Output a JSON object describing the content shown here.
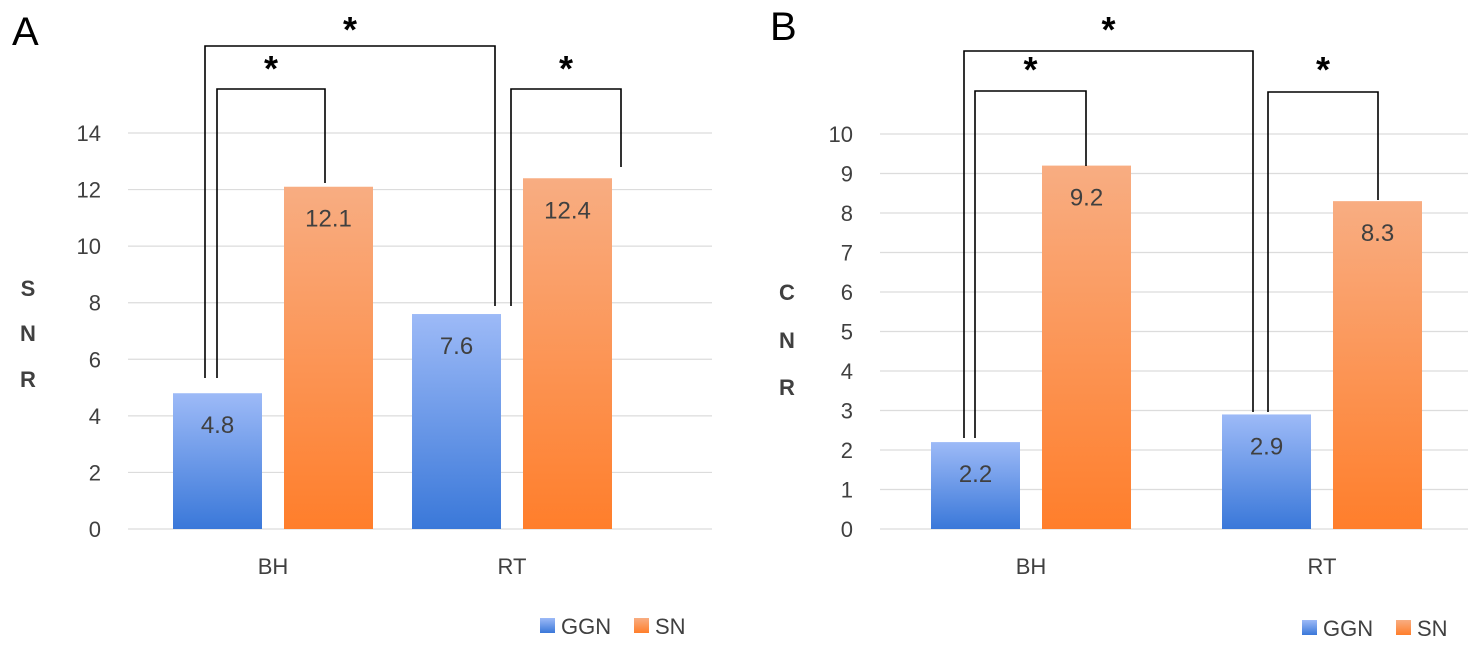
{
  "chart_data": [
    {
      "type": "bar",
      "panel_label": "A",
      "categories": [
        "BH",
        "RT"
      ],
      "series": [
        {
          "name": "GGN",
          "values": [
            4.8,
            7.6
          ]
        },
        {
          "name": "SN",
          "values": [
            12.1,
            12.4
          ]
        }
      ],
      "data_labels": {
        "GGN": [
          "4.8",
          "7.6"
        ],
        "SN": [
          "12.1",
          "12.4"
        ]
      },
      "ylabel": [
        "S",
        "N",
        "R"
      ],
      "ylim": [
        0,
        14
      ],
      "yticks": [
        "0",
        "2",
        "4",
        "6",
        "8",
        "10",
        "12",
        "14"
      ],
      "grid": true,
      "legend": [
        "GGN",
        "SN"
      ],
      "legend_position": "bottom-right",
      "significance_marker": "*",
      "significance_brackets": [
        "BH GGN vs BH SN",
        "RT GGN vs RT SN",
        "BH GGN vs RT GGN"
      ]
    },
    {
      "type": "bar",
      "panel_label": "B",
      "categories": [
        "BH",
        "RT"
      ],
      "series": [
        {
          "name": "GGN",
          "values": [
            2.2,
            2.9
          ]
        },
        {
          "name": "SN",
          "values": [
            9.2,
            8.3
          ]
        }
      ],
      "data_labels": {
        "GGN": [
          "2.2",
          "2.9"
        ],
        "SN": [
          "9.2",
          "8.3"
        ]
      },
      "ylabel": [
        "C",
        "N",
        "R"
      ],
      "ylim": [
        0,
        10
      ],
      "yticks": [
        "0",
        "1",
        "2",
        "3",
        "4",
        "5",
        "6",
        "7",
        "8",
        "9",
        "10"
      ],
      "grid": true,
      "legend": [
        "GGN",
        "SN"
      ],
      "legend_position": "bottom-right",
      "significance_marker": "*",
      "significance_brackets": [
        "BH GGN vs BH SN",
        "RT GGN vs RT SN",
        "BH GGN vs RT GGN"
      ]
    }
  ],
  "colors": {
    "ggn_top": "#9dbaf7",
    "ggn_bottom": "#3a78d9",
    "sn_top": "#f8ad82",
    "sn_bottom": "#ff7e2b",
    "grid": "#dcdcdc",
    "text": "#404040",
    "bracket": "#000000"
  }
}
